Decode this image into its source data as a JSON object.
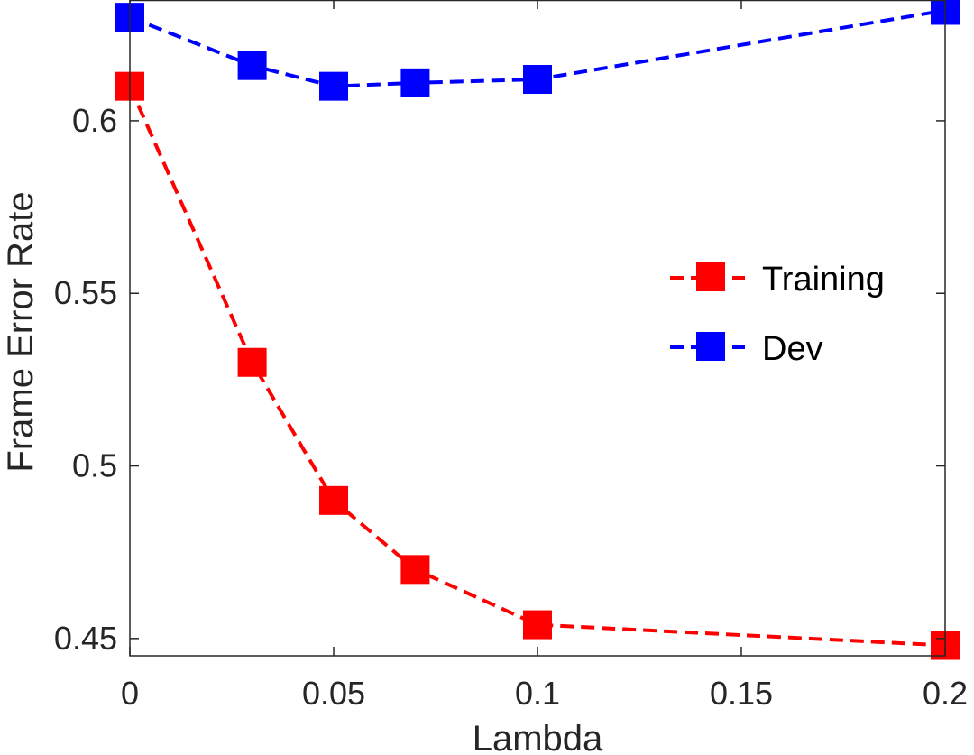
{
  "chart_data": {
    "type": "line",
    "title": "",
    "xlabel": "Lambda",
    "ylabel": "Frame Error Rate",
    "xlim": [
      0,
      0.2
    ],
    "ylim": [
      0.445,
      0.635
    ],
    "x_ticks": [
      0,
      0.05,
      0.1,
      0.15,
      0.2
    ],
    "x_tick_labels": [
      "0",
      "0.05",
      "0.1",
      "0.15",
      "0.2"
    ],
    "y_ticks": [
      0.45,
      0.5,
      0.55,
      0.6
    ],
    "y_tick_labels": [
      "0.45",
      "0.5",
      "0.55",
      "0.6"
    ],
    "grid": false,
    "legend_position": "right",
    "x": [
      0,
      0.03,
      0.05,
      0.07,
      0.1,
      0.2
    ],
    "series": [
      {
        "name": "Training",
        "color": "#ff0000",
        "marker": "square",
        "line_style": "dashed",
        "values": [
          0.61,
          0.53,
          0.49,
          0.47,
          0.454,
          0.448
        ]
      },
      {
        "name": "Dev",
        "color": "#0000ff",
        "marker": "square",
        "line_style": "dashed",
        "values": [
          0.63,
          0.616,
          0.61,
          0.611,
          0.612,
          0.632
        ]
      }
    ]
  }
}
